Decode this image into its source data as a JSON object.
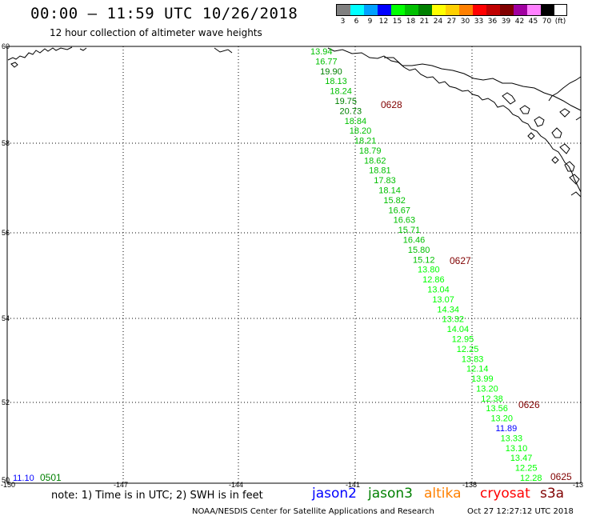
{
  "header": {
    "title": "00:00 – 11:59 UTC 10/26/2018",
    "subtitle": "12 hour collection of altimeter wave heights"
  },
  "legend": {
    "unit": "(ft)",
    "bins": [
      {
        "label": "3",
        "color": "#808080"
      },
      {
        "label": "6",
        "color": "#00ffff"
      },
      {
        "label": "9",
        "color": "#00a0ff"
      },
      {
        "label": "12",
        "color": "#0000ff"
      },
      {
        "label": "15",
        "color": "#00ff00"
      },
      {
        "label": "18",
        "color": "#00c000"
      },
      {
        "label": "21",
        "color": "#008000"
      },
      {
        "label": "24",
        "color": "#ffff00"
      },
      {
        "label": "27",
        "color": "#ffd000"
      },
      {
        "label": "30",
        "color": "#ff8000"
      },
      {
        "label": "33",
        "color": "#ff0000"
      },
      {
        "label": "36",
        "color": "#c00000"
      },
      {
        "label": "39",
        "color": "#800000"
      },
      {
        "label": "42",
        "color": "#a000a0"
      },
      {
        "label": "45",
        "color": "#ff80ff"
      },
      {
        "label": "70",
        "color": "#000000"
      }
    ]
  },
  "map": {
    "lat_labels": [
      "60",
      "58",
      "56",
      "54",
      "52",
      "50"
    ],
    "lon_labels": [
      "-150",
      "-147",
      "-144",
      "-141",
      "-138",
      "-13"
    ],
    "wave_heights": [
      {
        "v": "13.94",
        "c": "#00c000"
      },
      {
        "v": "16.77",
        "c": "#00c000"
      },
      {
        "v": "19.90",
        "c": "#008000"
      },
      {
        "v": "18.13",
        "c": "#00c000"
      },
      {
        "v": "18.24",
        "c": "#00c000"
      },
      {
        "v": "19.75",
        "c": "#008000"
      },
      {
        "v": "20.73",
        "c": "#008000"
      },
      {
        "v": "18.84",
        "c": "#00c000"
      },
      {
        "v": "18.20",
        "c": "#00c000"
      },
      {
        "v": "18.21",
        "c": "#00c000"
      },
      {
        "v": "18.79",
        "c": "#00c000"
      },
      {
        "v": "18.62",
        "c": "#00c000"
      },
      {
        "v": "18.81",
        "c": "#00c000"
      },
      {
        "v": "17.83",
        "c": "#00c000"
      },
      {
        "v": "18.14",
        "c": "#00c000"
      },
      {
        "v": "15.82",
        "c": "#00c000"
      },
      {
        "v": "16.67",
        "c": "#00c000"
      },
      {
        "v": "16.63",
        "c": "#00c000"
      },
      {
        "v": "15.71",
        "c": "#00c000"
      },
      {
        "v": "16.46",
        "c": "#00c000"
      },
      {
        "v": "15.80",
        "c": "#00c000"
      },
      {
        "v": "15.12",
        "c": "#00c000"
      },
      {
        "v": "13.80",
        "c": "#00ff00"
      },
      {
        "v": "12.86",
        "c": "#00ff00"
      },
      {
        "v": "13.04",
        "c": "#00ff00"
      },
      {
        "v": "13.07",
        "c": "#00ff00"
      },
      {
        "v": "14.34",
        "c": "#00ff00"
      },
      {
        "v": "13.32",
        "c": "#00ff00"
      },
      {
        "v": "14.04",
        "c": "#00ff00"
      },
      {
        "v": "12.95",
        "c": "#00ff00"
      },
      {
        "v": "12.25",
        "c": "#00ff00"
      },
      {
        "v": "13.83",
        "c": "#00ff00"
      },
      {
        "v": "12.14",
        "c": "#00ff00"
      },
      {
        "v": "13.99",
        "c": "#00ff00"
      },
      {
        "v": "13.20",
        "c": "#00ff00"
      },
      {
        "v": "12.38",
        "c": "#00ff00"
      },
      {
        "v": "13.56",
        "c": "#00ff00"
      },
      {
        "v": "13.20",
        "c": "#00ff00"
      },
      {
        "v": "11.89",
        "c": "#0000ff"
      },
      {
        "v": "13.33",
        "c": "#00ff00"
      },
      {
        "v": "13.10",
        "c": "#00ff00"
      },
      {
        "v": "13.47",
        "c": "#00ff00"
      },
      {
        "v": "12.25",
        "c": "#00ff00"
      },
      {
        "v": "12.28",
        "c": "#00ff00"
      }
    ],
    "time_labels": [
      {
        "text": "0628",
        "color": "#800000"
      },
      {
        "text": "0627",
        "color": "#800000"
      },
      {
        "text": "0626",
        "color": "#800000"
      },
      {
        "text": "0625",
        "color": "#800000"
      }
    ],
    "corner_value": {
      "text": "11.10",
      "color": "#0000ff"
    },
    "corner_time": {
      "text": "0501",
      "color": "#008000"
    }
  },
  "footer": {
    "note": "note: 1) Time is in UTC; 2) SWH is in feet",
    "satellites": [
      {
        "name": "jason2",
        "color": "#0000ff"
      },
      {
        "name": "jason3",
        "color": "#008000"
      },
      {
        "name": "altika",
        "color": "#ff8000"
      },
      {
        "name": "cryosat",
        "color": "#ff0000"
      },
      {
        "name": "s3a",
        "color": "#800000"
      }
    ],
    "credit": "NOAA/NESDIS Center for Satellite Applications and Research",
    "timestamp": "Oct 27 12:27:12 UTC 2018"
  }
}
